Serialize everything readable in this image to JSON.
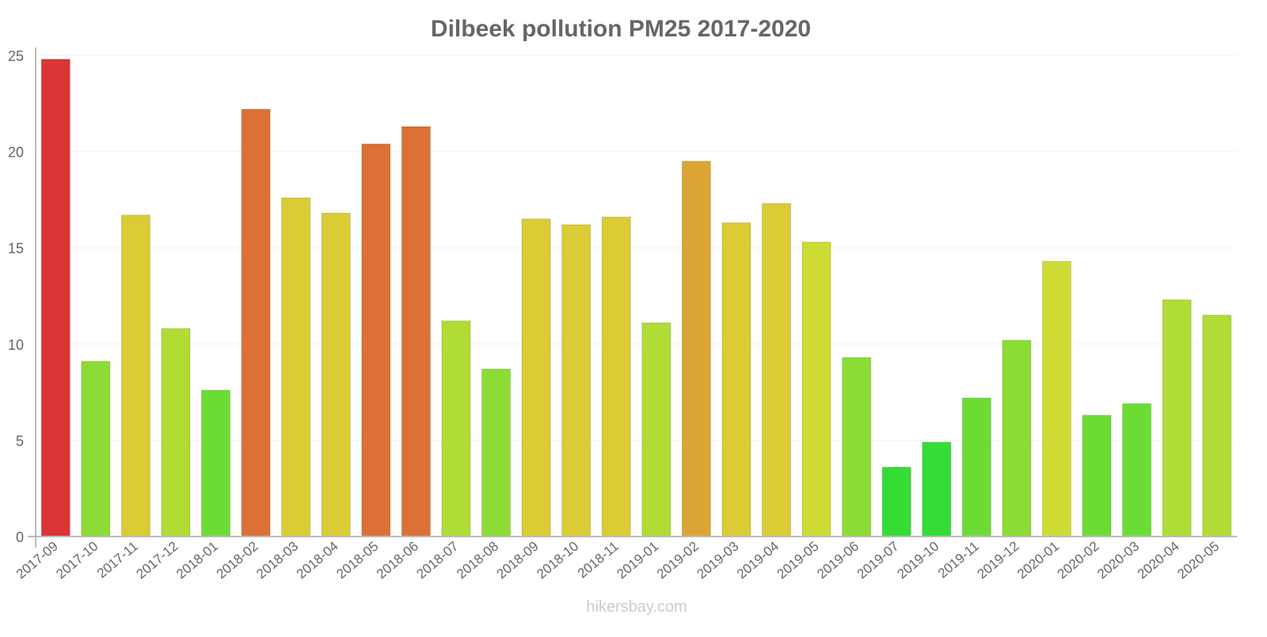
{
  "chart_data": {
    "type": "bar",
    "title": "Dilbeek pollution PM25 2017-2020",
    "xlabel": "",
    "ylabel": "",
    "ylim": [
      0,
      25
    ],
    "yticks": [
      "0",
      "5",
      "10",
      "15",
      "20",
      "25"
    ],
    "grid": true,
    "legend": "none",
    "categories": [
      "2017-09",
      "2017-10",
      "2017-11",
      "2017-12",
      "2018-01",
      "2018-02",
      "2018-03",
      "2018-04",
      "2018-05",
      "2018-06",
      "2018-07",
      "2018-08",
      "2018-09",
      "2018-10",
      "2018-11",
      "2019-01",
      "2019-02",
      "2019-03",
      "2019-04",
      "2019-05",
      "2019-06",
      "2019-07",
      "2019-10",
      "2019-11",
      "2019-12",
      "2020-01",
      "2020-02",
      "2020-03",
      "2020-04",
      "2020-05"
    ],
    "values": [
      24.8,
      9.1,
      16.7,
      10.8,
      7.6,
      22.2,
      17.6,
      16.8,
      20.4,
      21.3,
      11.2,
      8.7,
      16.5,
      16.2,
      16.6,
      11.1,
      19.5,
      16.3,
      17.3,
      15.3,
      9.3,
      3.6,
      4.9,
      7.2,
      10.2,
      14.3,
      6.3,
      6.9,
      12.3,
      11.5
    ],
    "colors": [
      "#dc3535",
      "#8cdc35",
      "#dbcb35",
      "#b0dc35",
      "#6cdc35",
      "#dd7035",
      "#dbcb35",
      "#dbcb35",
      "#dd7035",
      "#dd7035",
      "#b0dc35",
      "#8cdc35",
      "#dbcb35",
      "#dbcb35",
      "#dbcb35",
      "#b0dc35",
      "#dba535",
      "#dbcb35",
      "#dbcb35",
      "#cfdb35",
      "#8cdc35",
      "#35dc35",
      "#35dc35",
      "#6cdc35",
      "#8cdc35",
      "#cfdb35",
      "#6cdc35",
      "#6cdc35",
      "#b0dc35",
      "#b0dc35"
    ]
  },
  "watermark": "hikersbay.com"
}
